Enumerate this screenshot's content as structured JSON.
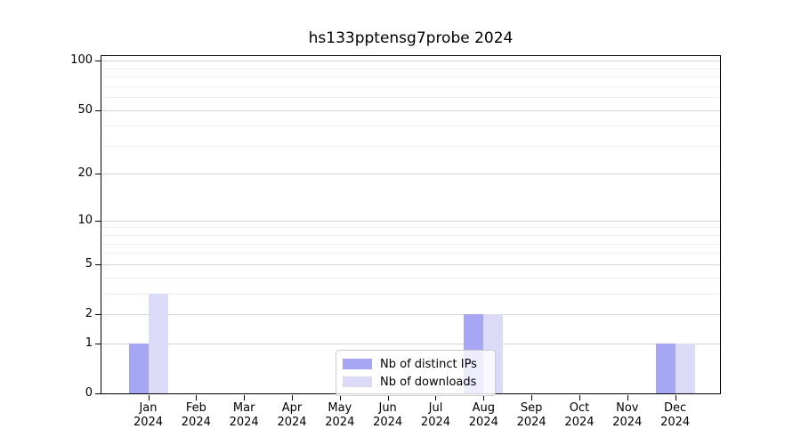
{
  "chart_data": {
    "type": "bar",
    "title": "hs133pptensg7probe 2024",
    "categories": [
      "Jan",
      "Feb",
      "Mar",
      "Apr",
      "May",
      "Jun",
      "Jul",
      "Aug",
      "Sep",
      "Oct",
      "Nov",
      "Dec"
    ],
    "category_year": "2024",
    "series": [
      {
        "name": "Nb of distinct IPs",
        "color": "#a6a6f5",
        "values": [
          1,
          0,
          0,
          0,
          0,
          0,
          0,
          2,
          0,
          0,
          0,
          1
        ]
      },
      {
        "name": "Nb of downloads",
        "color": "#dbdbf8",
        "values": [
          3,
          0,
          0,
          0,
          0,
          0,
          0,
          2,
          0,
          0,
          0,
          1
        ]
      }
    ],
    "y_axis": {
      "scale": "log1p",
      "major_ticks": [
        0,
        1,
        2,
        5,
        10,
        20,
        50,
        100
      ],
      "minor_gridlines": [
        3,
        4,
        6,
        7,
        8,
        9,
        30,
        40,
        60,
        70,
        80,
        90
      ],
      "ylim": [
        0,
        107
      ]
    },
    "xlabel": "",
    "ylabel": "",
    "grid": true,
    "legend": {
      "position": "inside-lower-center",
      "entries": [
        "Nb of distinct IPs",
        "Nb of downloads"
      ]
    }
  },
  "colors": {
    "grid_major": "#d5d5d5",
    "grid_minor": "#f0f0f0",
    "spine": "#000000",
    "text": "#000000",
    "legend_border": "#cccccc",
    "background": "#ffffff"
  }
}
